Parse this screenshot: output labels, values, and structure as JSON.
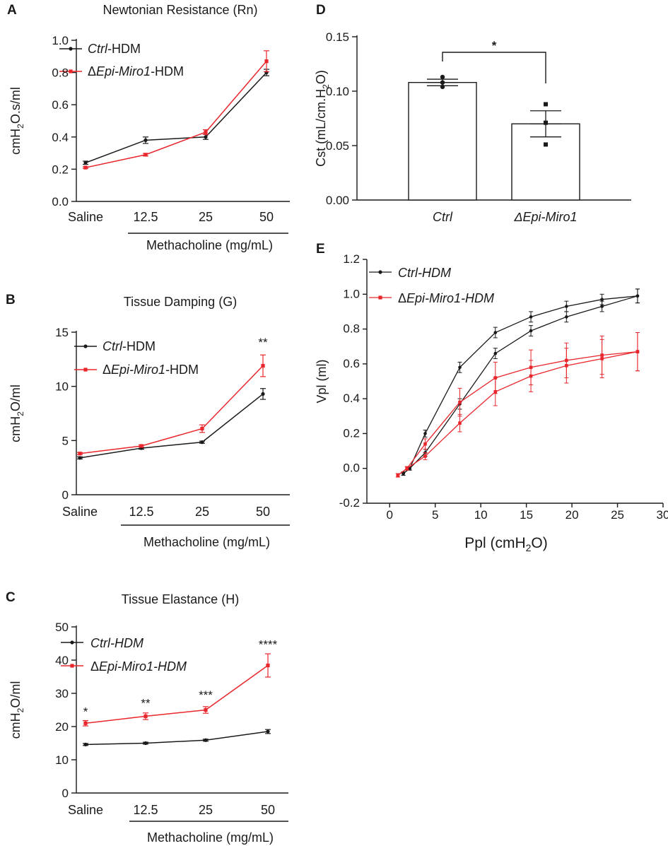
{
  "colors": {
    "ctrl": "#1a1a1a",
    "miro": "#e8262c"
  },
  "chart_data": [
    {
      "id": "A",
      "panel_label": "A",
      "type": "line",
      "title": "Newtonian Resistance (Rn)",
      "ylabel": "cmH₂O.s/ml",
      "xlabel": "Methacholine (mg/mL)",
      "categories": [
        "Saline",
        "12.5",
        "25",
        "50"
      ],
      "ylim": [
        0,
        1.0
      ],
      "yticks": [
        "0.0",
        "0.2",
        "0.4",
        "0.6",
        "0.8",
        "1.0"
      ],
      "series": [
        {
          "name": "Ctrl-HDM",
          "legend_main": "Ctrl",
          "legend_suffix": "-HDM",
          "delta": false,
          "color": "#1a1a1a",
          "marker": "circle",
          "values": [
            0.24,
            0.38,
            0.4,
            0.8
          ],
          "err": [
            0.01,
            0.02,
            0.015,
            0.02
          ]
        },
        {
          "name": "ΔEpi-Miro1-HDM",
          "legend_main": "Epi-Miro1",
          "legend_suffix": "-HDM",
          "delta": true,
          "color": "#e8262c",
          "marker": "square",
          "values": [
            0.21,
            0.29,
            0.43,
            0.87
          ],
          "err": [
            0.005,
            0.008,
            0.015,
            0.065
          ]
        }
      ],
      "significance": []
    },
    {
      "id": "B",
      "panel_label": "B",
      "type": "line",
      "title": "Tissue Damping (G)",
      "ylabel": "cmH₂O/ml",
      "xlabel": "Methacholine (mg/mL)",
      "categories": [
        "Saline",
        "12.5",
        "25",
        "50"
      ],
      "ylim": [
        0,
        15
      ],
      "yticks": [
        "0",
        "5",
        "10",
        "15"
      ],
      "series": [
        {
          "name": "Ctrl-HDM",
          "legend_main": "Ctrl",
          "legend_suffix": "-HDM",
          "delta": false,
          "color": "#1a1a1a",
          "marker": "circle",
          "values": [
            3.4,
            4.3,
            4.85,
            9.3
          ],
          "err": [
            0.1,
            0.1,
            0.1,
            0.5
          ]
        },
        {
          "name": "ΔEpi-Miro1-HDM",
          "legend_main": "Epi-Miro1",
          "legend_suffix": "-HDM",
          "delta": true,
          "color": "#e8262c",
          "marker": "square",
          "values": [
            3.8,
            4.5,
            6.1,
            11.9
          ],
          "err": [
            0.1,
            0.1,
            0.35,
            1.0
          ]
        }
      ],
      "significance": [
        {
          "index": 3,
          "text": "**",
          "y": 13.7
        }
      ]
    },
    {
      "id": "C",
      "panel_label": "C",
      "type": "line",
      "title": "Tissue Elastance (H)",
      "ylabel": "cmH₂O/ml",
      "xlabel": "Methacholine (mg/mL)",
      "categories": [
        "Saline",
        "12.5",
        "25",
        "50"
      ],
      "ylim": [
        0,
        50
      ],
      "yticks": [
        "0",
        "10",
        "20",
        "30",
        "40",
        "50"
      ],
      "series": [
        {
          "name": "Ctrl-HDM",
          "legend_main": "Ctrl-HDM",
          "legend_suffix": "",
          "delta": false,
          "color": "#1a1a1a",
          "marker": "circle",
          "values": [
            14.6,
            15.0,
            15.9,
            18.5
          ],
          "err": [
            0.3,
            0.3,
            0.3,
            0.6
          ]
        },
        {
          "name": "ΔEpi-Miro1-HDM",
          "legend_main": "Epi-Miro1-HDM",
          "legend_suffix": "",
          "delta": true,
          "color": "#e8262c",
          "marker": "square",
          "values": [
            21.0,
            23.1,
            25.0,
            38.4
          ],
          "err": [
            0.8,
            1.0,
            1.0,
            3.5
          ]
        }
      ],
      "significance": [
        {
          "index": 0,
          "text": "*",
          "y": 23.3
        },
        {
          "index": 1,
          "text": "**",
          "y": 25.9
        },
        {
          "index": 2,
          "text": "***",
          "y": 28.3
        },
        {
          "index": 3,
          "text": "****",
          "y": 43.5
        }
      ]
    },
    {
      "id": "D",
      "panel_label": "D",
      "type": "bar",
      "title": "",
      "ylabel": "Cst (mL/cm.H₂O)",
      "categories": [
        "Ctrl",
        "ΔEpi-Miro1"
      ],
      "ylim": [
        0,
        0.15
      ],
      "yticks": [
        "0.00",
        "0.05",
        "0.10",
        "0.15"
      ],
      "values": [
        0.108,
        0.07
      ],
      "err": [
        0.003,
        0.012
      ],
      "points": [
        [
          0.113,
          0.108,
          0.104
        ],
        [
          0.088,
          0.071,
          0.051
        ]
      ],
      "significance": "*"
    },
    {
      "id": "E",
      "panel_label": "E",
      "type": "line",
      "title": "",
      "ylabel": "Vpl (ml)",
      "xlabel": "Ppl (cmH₂O)",
      "xlim": [
        -2.5,
        30
      ],
      "ylim": [
        -0.2,
        1.2
      ],
      "xticks": [
        "0",
        "5",
        "10",
        "15",
        "20",
        "25",
        "30"
      ],
      "yticks": [
        "-0.2",
        "0.0",
        "0.2",
        "0.4",
        "0.6",
        "0.8",
        "1.0",
        "1.2"
      ],
      "series": [
        {
          "name": "Ctrl-HDM",
          "legend_main": "Ctrl-HDM",
          "legend_suffix": "",
          "delta": false,
          "color": "#1a1a1a",
          "marker": "circle",
          "x": [
            1.5,
            2.2,
            3.9,
            7.7,
            11.6,
            15.5,
            19.4,
            23.3,
            27.2
          ],
          "y": [
            -0.03,
            0.0,
            0.2,
            0.58,
            0.78,
            0.87,
            0.93,
            0.97,
            0.99
          ],
          "yerr": [
            0.01,
            0.01,
            0.02,
            0.03,
            0.03,
            0.03,
            0.03,
            0.03,
            0.04
          ]
        },
        {
          "name": "Ctrl-HDM (deflation)",
          "legend_main": "",
          "legend_suffix": "",
          "delta": false,
          "color": "#1a1a1a",
          "marker": "circle",
          "x": [
            27.2,
            23.3,
            19.4,
            15.5,
            11.6,
            7.7,
            3.9,
            2.2,
            1.5
          ],
          "y": [
            0.99,
            0.93,
            0.87,
            0.79,
            0.66,
            0.37,
            0.09,
            0.0,
            -0.03
          ],
          "yerr": [
            0.04,
            0.03,
            0.03,
            0.03,
            0.03,
            0.03,
            0.02,
            0.01,
            0.01
          ]
        },
        {
          "name": "ΔEpi-Miro1-HDM",
          "legend_main": "Epi-Miro1-HDM",
          "legend_suffix": "",
          "delta": true,
          "color": "#e8262c",
          "marker": "square",
          "x": [
            0.9,
            1.9,
            3.9,
            7.7,
            11.6,
            15.5,
            19.4,
            23.3,
            27.2
          ],
          "y": [
            -0.04,
            0.0,
            0.14,
            0.38,
            0.52,
            0.58,
            0.62,
            0.65,
            0.67
          ],
          "yerr": [
            0.01,
            0.01,
            0.03,
            0.08,
            0.09,
            0.1,
            0.1,
            0.11,
            0.11
          ]
        },
        {
          "name": "ΔEpi-Miro1-HDM (deflation)",
          "legend_main": "",
          "legend_suffix": "",
          "delta": true,
          "color": "#e8262c",
          "marker": "square",
          "x": [
            27.2,
            23.3,
            19.4,
            15.5,
            11.6,
            7.7,
            3.9,
            1.9,
            0.9
          ],
          "y": [
            0.67,
            0.63,
            0.59,
            0.53,
            0.44,
            0.26,
            0.07,
            0.0,
            -0.04
          ],
          "yerr": [
            0.11,
            0.11,
            0.1,
            0.09,
            0.08,
            0.05,
            0.02,
            0.01,
            0.01
          ]
        }
      ]
    }
  ]
}
